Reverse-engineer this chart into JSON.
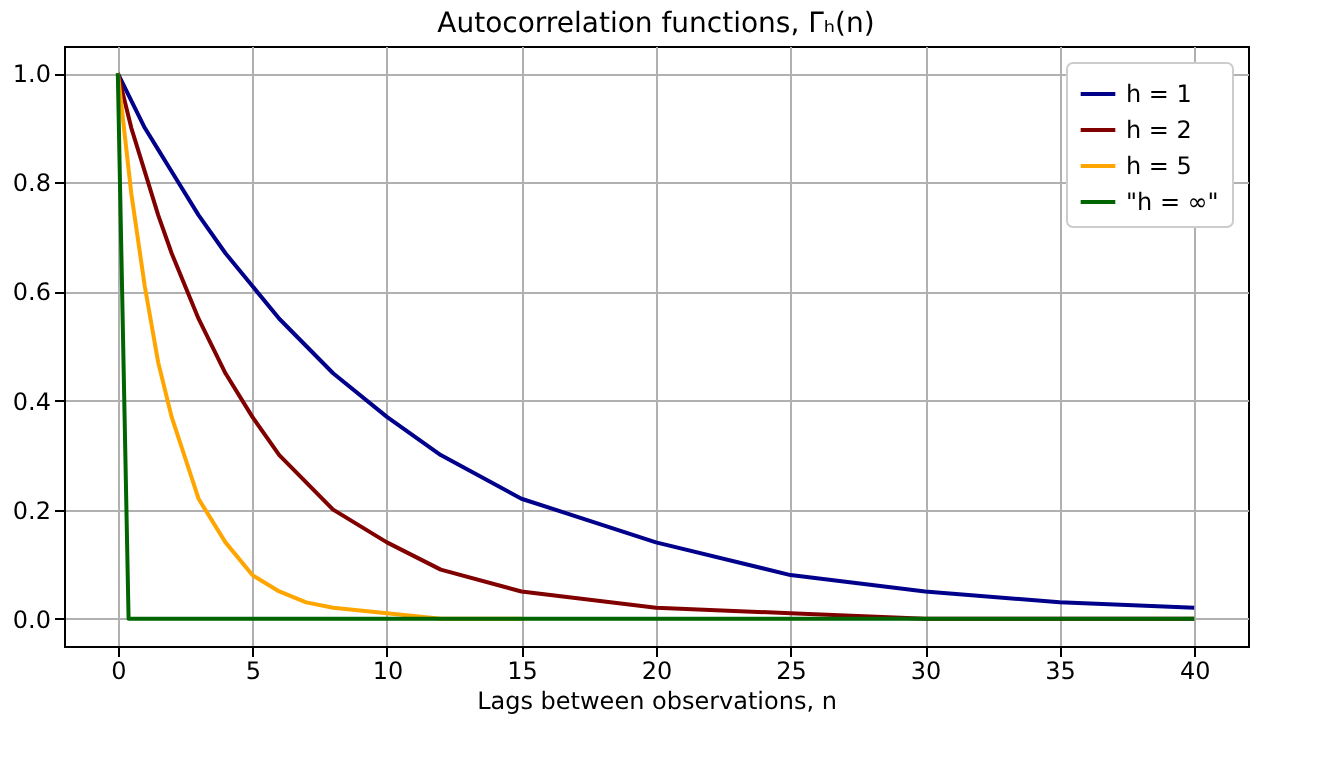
{
  "chart_data": {
    "type": "line",
    "title": "Autocorrelation functions, Γₕ(n)",
    "xlabel": "Lags between observations, n",
    "x": [
      0,
      0.5,
      1,
      1.5,
      2,
      3,
      4,
      5,
      6,
      7,
      8,
      10,
      12,
      15,
      20,
      25,
      30,
      35,
      40
    ],
    "series": [
      {
        "name": "h = 1",
        "color": "#00008b",
        "values": [
          1,
          0.95,
          0.9,
          0.86,
          0.82,
          0.74,
          0.67,
          0.61,
          0.55,
          0.5,
          0.45,
          0.37,
          0.3,
          0.22,
          0.14,
          0.08,
          0.05,
          0.03,
          0.02
        ]
      },
      {
        "name": "h = 2",
        "color": "#800000",
        "values": [
          1,
          0.9,
          0.82,
          0.74,
          0.67,
          0.55,
          0.45,
          0.37,
          0.3,
          0.25,
          0.2,
          0.14,
          0.09,
          0.05,
          0.02,
          0.01,
          0,
          0,
          0
        ]
      },
      {
        "name": "h = 5",
        "color": "#ffa500",
        "values": [
          1,
          0.78,
          0.61,
          0.47,
          0.37,
          0.22,
          0.14,
          0.08,
          0.05,
          0.03,
          0.02,
          0.01,
          0,
          0,
          null,
          null,
          null,
          null,
          null
        ]
      },
      {
        "name": "\"h = ∞\"",
        "color": "#006400",
        "x": [
          0,
          0.4,
          40
        ],
        "values": [
          1,
          0,
          0
        ]
      }
    ],
    "xlim": [
      -2,
      42
    ],
    "xticks": [
      0,
      5,
      10,
      15,
      20,
      25,
      30,
      35,
      40
    ],
    "ylim": [
      -0.05,
      1.05
    ],
    "yticks": [
      {
        "value": 0,
        "label": "0.0"
      },
      0.2,
      0.4,
      0.6,
      0.8,
      {
        "value": 1,
        "label": "1.0"
      }
    ],
    "grid": true,
    "legend": "top right",
    "marker": "none",
    "line_style": "solid"
  }
}
